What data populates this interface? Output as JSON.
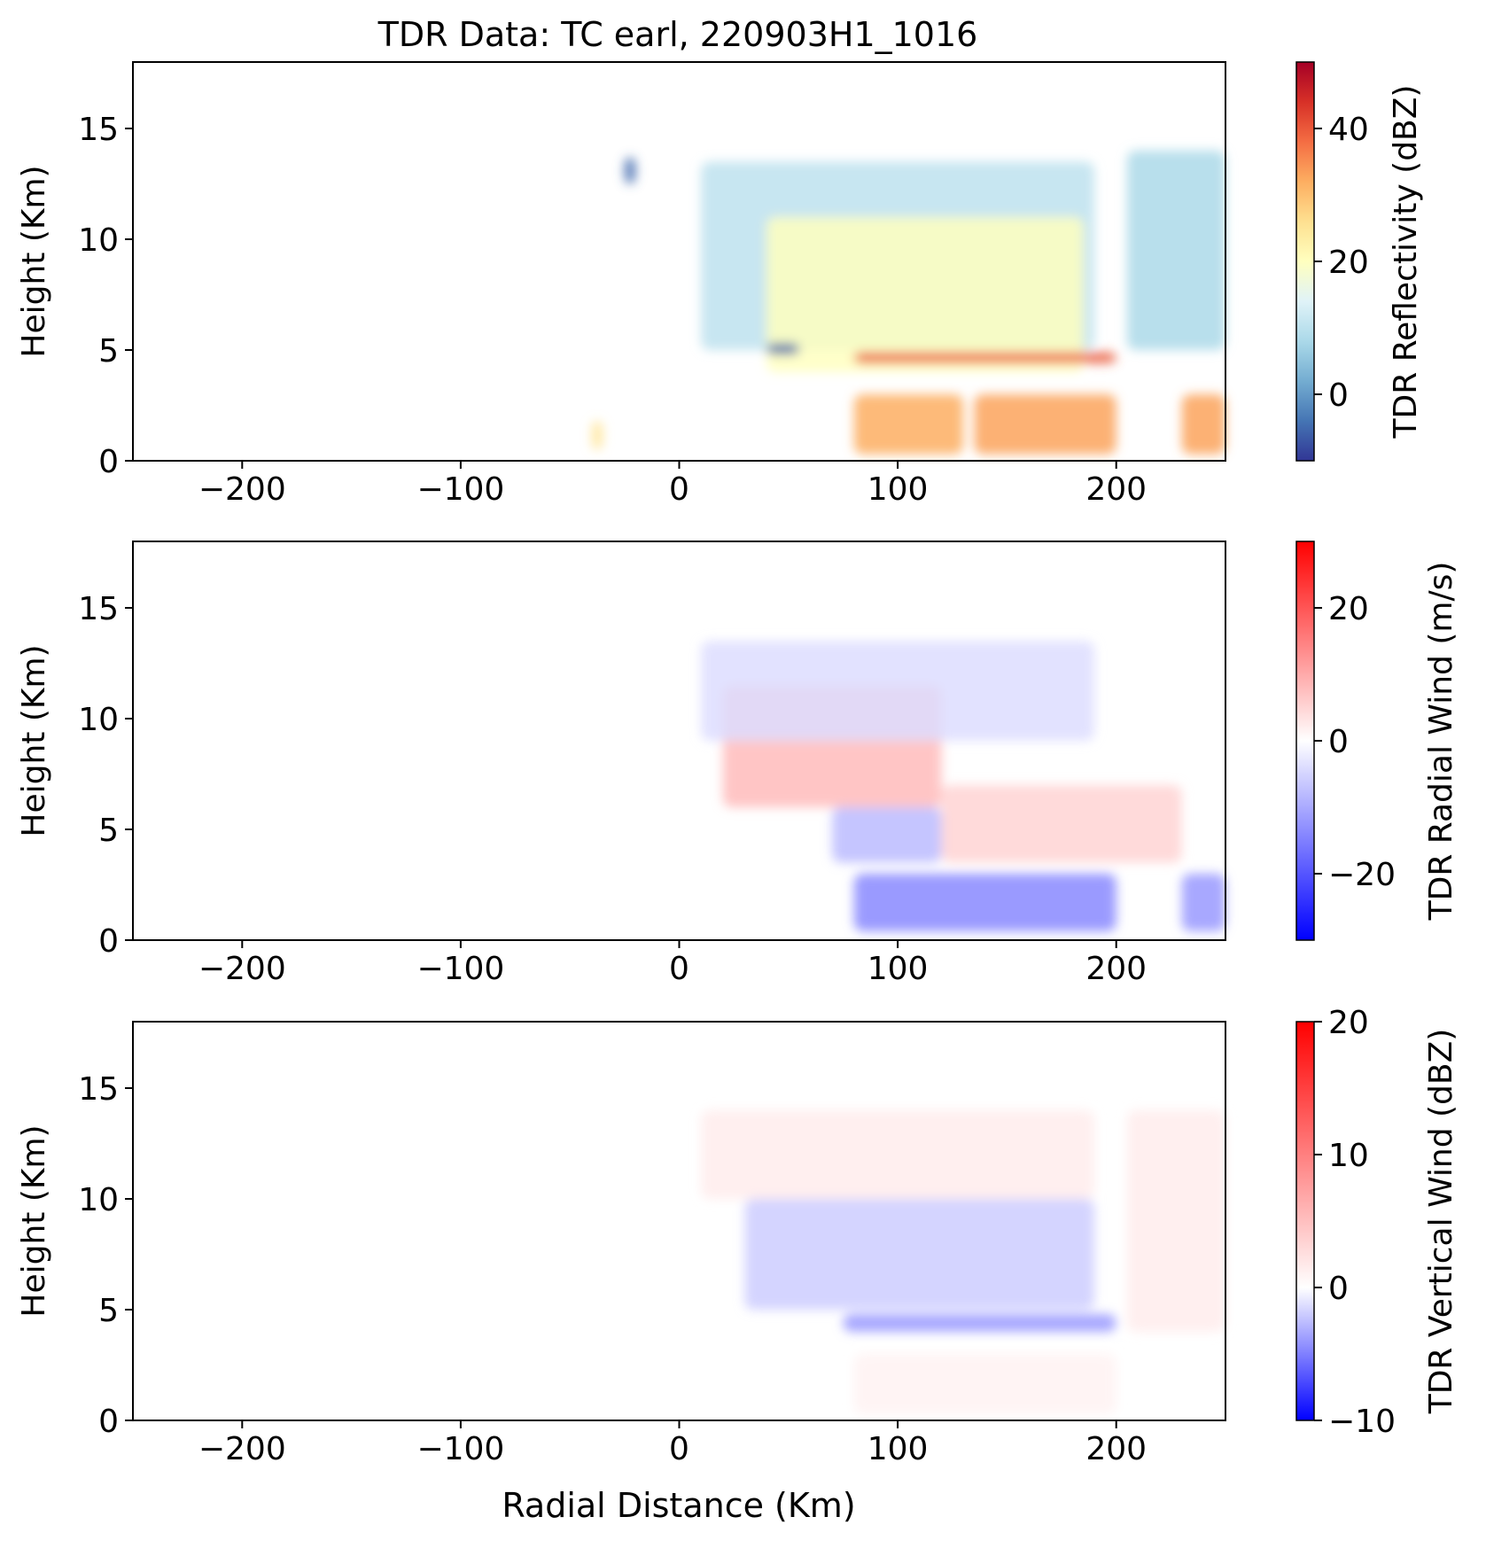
{
  "title": "TDR Data: TC earl, 220903H1_1016",
  "xlabel": "Radial Distance (Km)",
  "chart_data": [
    {
      "type": "heatmap",
      "title": "TDR Data: TC earl, 220903H1_1016",
      "ylabel": "Height (Km)",
      "xlabel": "",
      "xlim": [
        -250,
        250
      ],
      "ylim": [
        0,
        18
      ],
      "x_ticks": [
        -200,
        -100,
        0,
        100,
        200
      ],
      "x_tick_labels": [
        "−200",
        "−100",
        "0",
        "100",
        "200"
      ],
      "y_ticks": [
        0,
        5,
        10,
        15
      ],
      "y_tick_labels": [
        "0",
        "5",
        "10",
        "15"
      ],
      "colorbar": {
        "label": "TDR Reflectivity (dBZ)",
        "colormap": "RdYlBu_r",
        "range": [
          -10,
          50
        ],
        "ticks": [
          0,
          20,
          40
        ],
        "tick_labels": [
          "0",
          "20",
          "40"
        ]
      },
      "features": [
        {
          "kind": "anvil",
          "x": [
            10,
            190
          ],
          "y": [
            5,
            13.5
          ],
          "value": 10
        },
        {
          "kind": "core",
          "x": [
            40,
            185
          ],
          "y": [
            4,
            11
          ],
          "value": 20
        },
        {
          "kind": "rain",
          "x": [
            80,
            130
          ],
          "y": [
            0.3,
            3
          ],
          "value": 32
        },
        {
          "kind": "rain",
          "x": [
            135,
            200
          ],
          "y": [
            0.3,
            3
          ],
          "value": 33
        },
        {
          "kind": "rain",
          "x": [
            230,
            250
          ],
          "y": [
            0.3,
            3
          ],
          "value": 33
        },
        {
          "kind": "bright_band",
          "x": [
            80,
            200
          ],
          "y": [
            4.4,
            4.9
          ],
          "value": 40
        },
        {
          "kind": "anvil",
          "x": [
            205,
            250
          ],
          "y": [
            5,
            14
          ],
          "value": 8
        },
        {
          "kind": "echo",
          "x": [
            -25,
            -20
          ],
          "y": [
            12.5,
            13.7
          ],
          "value": -5
        },
        {
          "kind": "echo",
          "x": [
            40,
            55
          ],
          "y": [
            4.8,
            5.3
          ],
          "value": -6
        },
        {
          "kind": "echo",
          "x": [
            -40,
            -35
          ],
          "y": [
            0.5,
            1.8
          ],
          "value": 25
        }
      ]
    },
    {
      "type": "heatmap",
      "title": "",
      "ylabel": "Height (Km)",
      "xlabel": "",
      "xlim": [
        -250,
        250
      ],
      "ylim": [
        0,
        18
      ],
      "x_ticks": [
        -200,
        -100,
        0,
        100,
        200
      ],
      "x_tick_labels": [
        "−200",
        "−100",
        "0",
        "100",
        "200"
      ],
      "y_ticks": [
        0,
        5,
        10,
        15
      ],
      "y_tick_labels": [
        "0",
        "5",
        "10",
        "15"
      ],
      "colorbar": {
        "label": "TDR Radial Wind (m/s)",
        "colormap": "bwr",
        "range": [
          -30,
          30
        ],
        "ticks": [
          -20,
          0,
          20
        ],
        "tick_labels": [
          "−20",
          "0",
          "20"
        ]
      },
      "features": [
        {
          "kind": "outflow",
          "x": [
            20,
            120
          ],
          "y": [
            6,
            11.5
          ],
          "value": 8
        },
        {
          "kind": "upper",
          "x": [
            10,
            190
          ],
          "y": [
            9,
            13.5
          ],
          "value": -4
        },
        {
          "kind": "lower",
          "x": [
            80,
            200
          ],
          "y": [
            0.4,
            3
          ],
          "value": -14
        },
        {
          "kind": "lower",
          "x": [
            230,
            250
          ],
          "y": [
            0.4,
            3
          ],
          "value": -12
        },
        {
          "kind": "mid",
          "x": [
            120,
            230
          ],
          "y": [
            3.5,
            7
          ],
          "value": 5
        },
        {
          "kind": "mid",
          "x": [
            70,
            120
          ],
          "y": [
            3.5,
            6
          ],
          "value": -8
        }
      ]
    },
    {
      "type": "heatmap",
      "title": "",
      "ylabel": "Height (Km)",
      "xlabel": "Radial Distance (Km)",
      "xlim": [
        -250,
        250
      ],
      "ylim": [
        0,
        18
      ],
      "x_ticks": [
        -200,
        -100,
        0,
        100,
        200
      ],
      "x_tick_labels": [
        "−200",
        "−100",
        "0",
        "100",
        "200"
      ],
      "y_ticks": [
        0,
        5,
        10,
        15
      ],
      "y_tick_labels": [
        "0",
        "5",
        "10",
        "15"
      ],
      "colorbar": {
        "label": "TDR Vertical Wind (dBZ)",
        "colormap": "bwr",
        "range": [
          -10,
          20
        ],
        "ticks": [
          -10,
          0,
          10,
          20
        ],
        "tick_labels": [
          "−10",
          "0",
          "10",
          "20"
        ]
      },
      "features": [
        {
          "kind": "upper",
          "x": [
            10,
            190
          ],
          "y": [
            10,
            14
          ],
          "value": 1.5
        },
        {
          "kind": "mid",
          "x": [
            30,
            190
          ],
          "y": [
            5,
            10
          ],
          "value": -2
        },
        {
          "kind": "melting",
          "x": [
            75,
            200
          ],
          "y": [
            4,
            4.8
          ],
          "value": -4
        },
        {
          "kind": "lower",
          "x": [
            80,
            200
          ],
          "y": [
            0.3,
            3
          ],
          "value": 1
        },
        {
          "kind": "upper",
          "x": [
            205,
            250
          ],
          "y": [
            4,
            14
          ],
          "value": 1.5
        }
      ]
    }
  ]
}
